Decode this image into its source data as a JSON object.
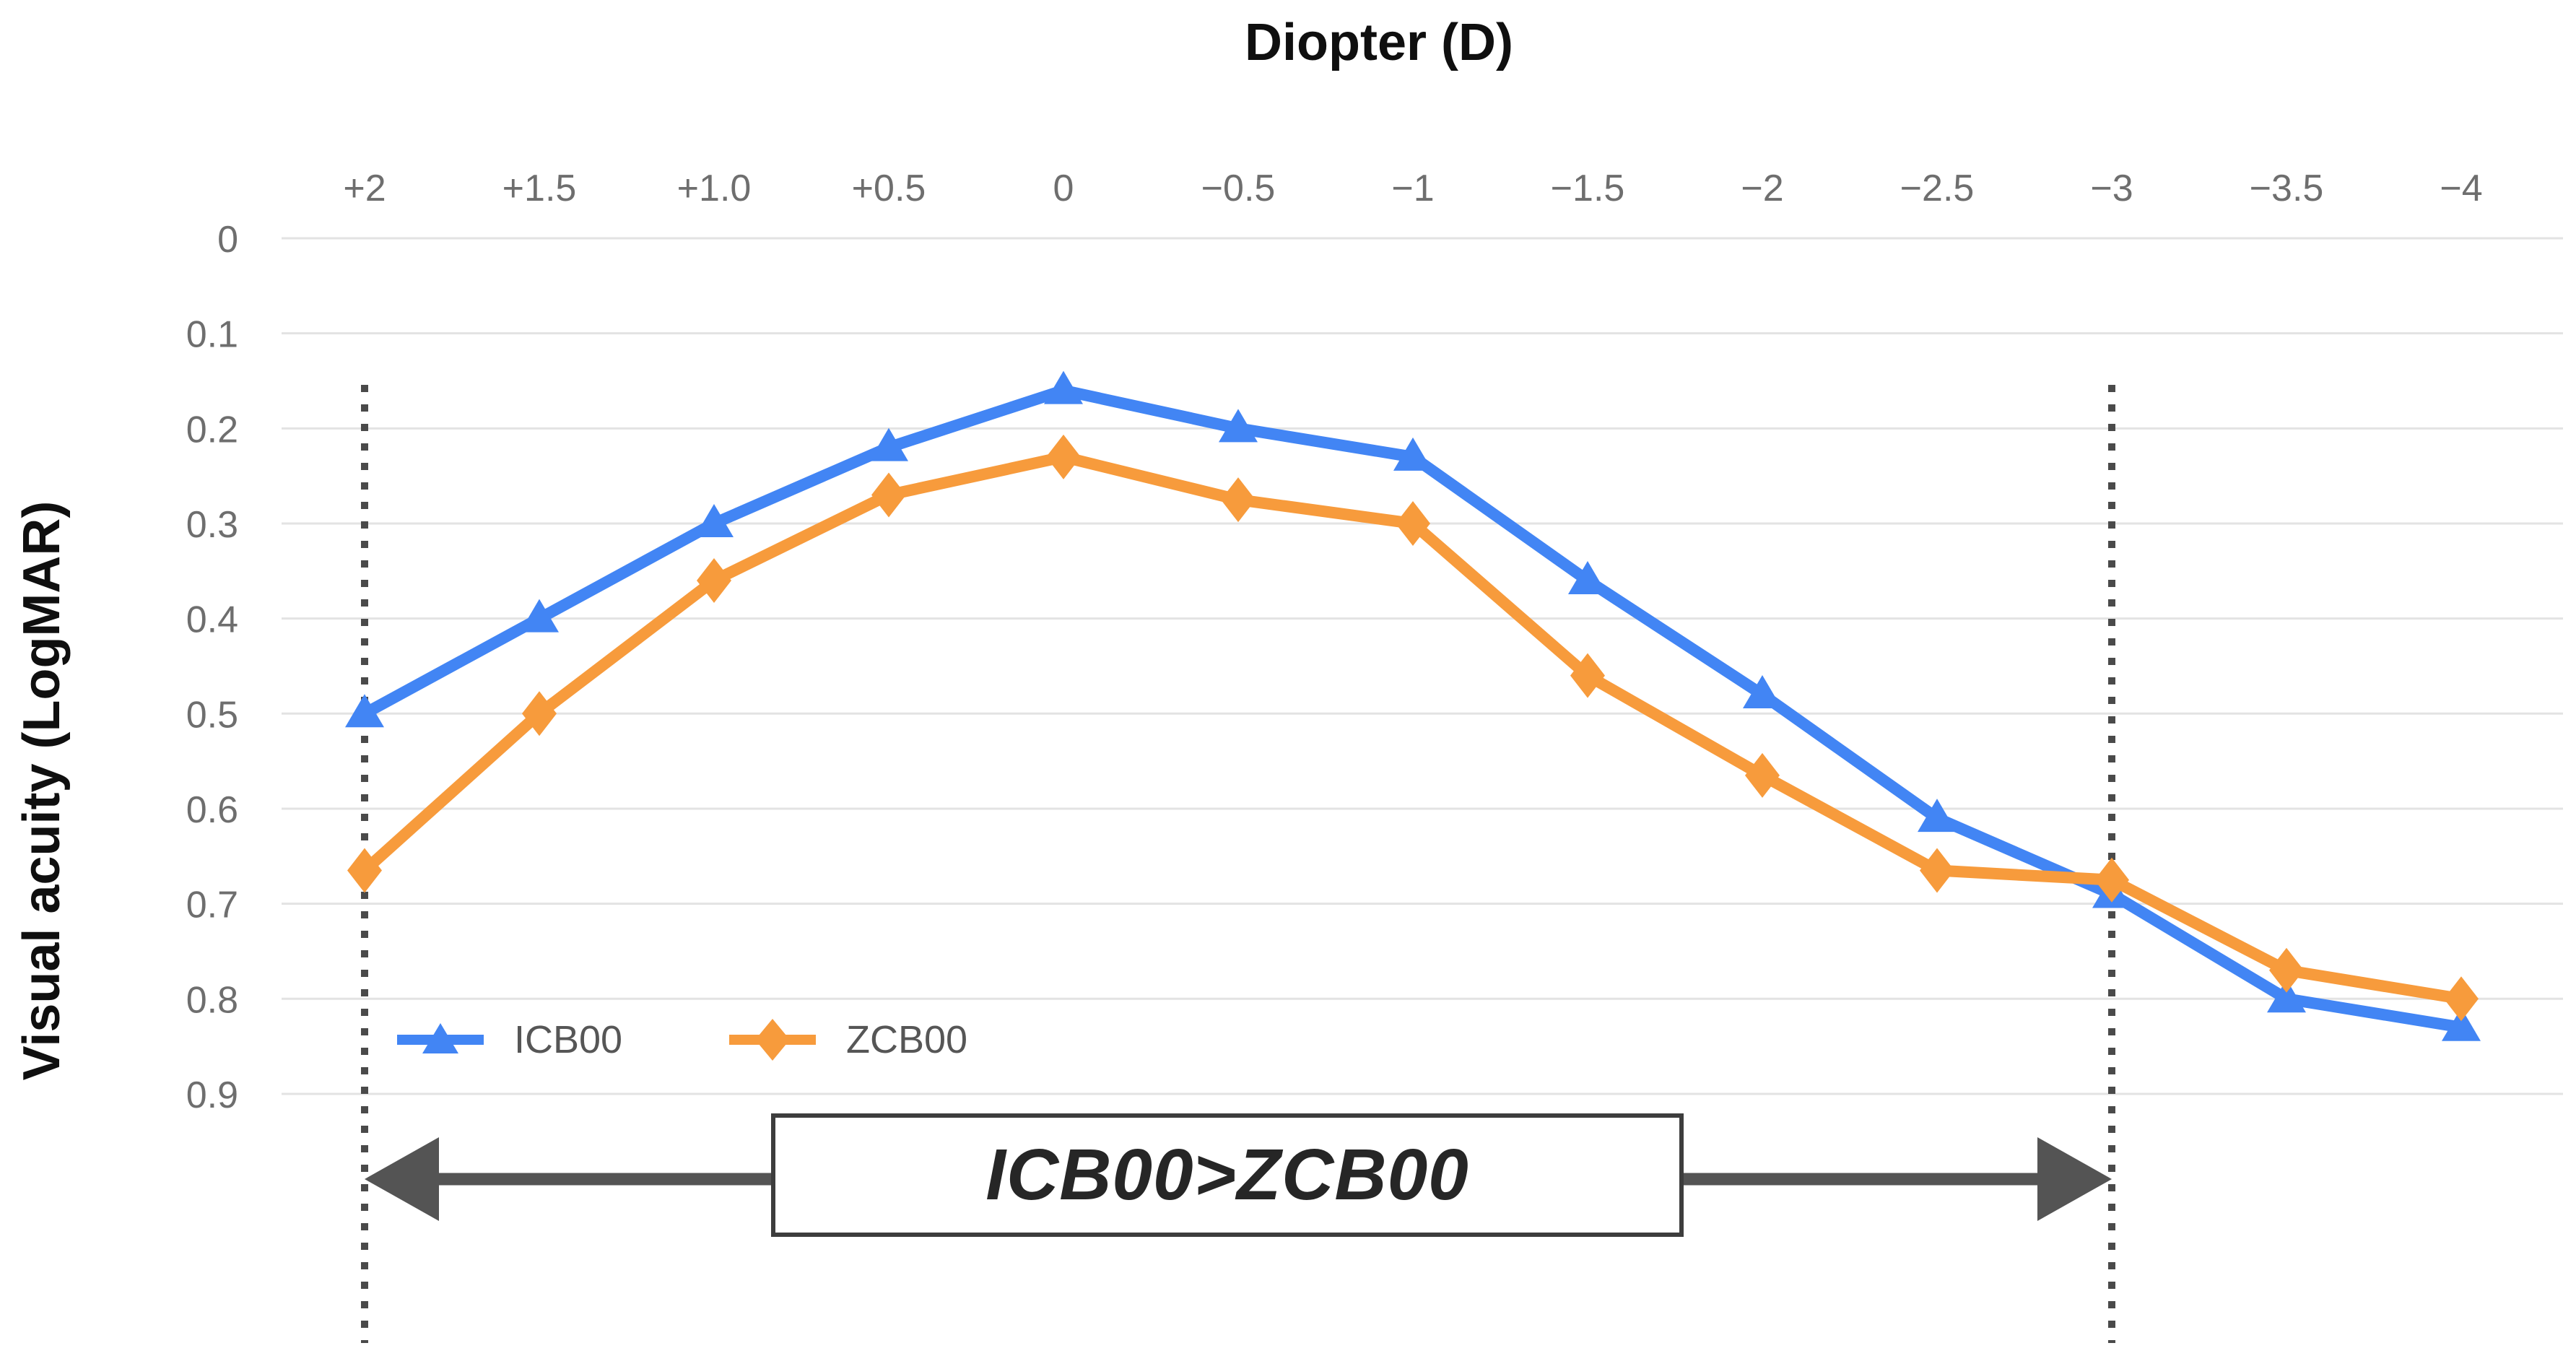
{
  "chart_data": {
    "type": "line",
    "title": "Diopter (D)",
    "ylabel": "Visual acuity (LogMAR)",
    "xlabel_position": "top",
    "y_inverted": true,
    "ylim": [
      0,
      0.9
    ],
    "grid": "horizontal",
    "legend_position": "inside-bottom-left",
    "categories": [
      "+2",
      "+1.5",
      "+1.0",
      "+0.5",
      "0",
      "−0.5",
      "−1",
      "−1.5",
      "−2",
      "−2.5",
      "−3",
      "−3.5",
      "−4"
    ],
    "y_ticks": [
      "0",
      "0.1",
      "0.2",
      "0.3",
      "0.4",
      "0.5",
      "0.6",
      "0.7",
      "0.8",
      "0.9"
    ],
    "series": [
      {
        "name": "ICB00",
        "marker": "triangle",
        "color": "#4285F4",
        "values": [
          0.5,
          0.4,
          0.3,
          0.22,
          0.16,
          0.2,
          0.23,
          0.36,
          0.48,
          0.61,
          0.69,
          0.8,
          0.83
        ]
      },
      {
        "name": "ZCB00",
        "marker": "diamond",
        "color": "#F79B3C",
        "values": [
          0.665,
          0.5,
          0.36,
          0.27,
          0.23,
          0.275,
          0.3,
          0.46,
          0.565,
          0.665,
          0.675,
          0.77,
          0.8
        ]
      }
    ],
    "annotations": {
      "dotted_lines": {
        "categories": [
          "+2",
          "−3"
        ],
        "color": "#4a4a4a"
      },
      "range_arrow": {
        "label": "ICB00>ZCB00",
        "from_category": "+2",
        "to_category": "−3",
        "arrow_color": "#545454",
        "box_border_color": "#3d3d3d",
        "text_color": "#262626"
      }
    },
    "colors": {
      "background": "#ffffff",
      "gridline": "#e3e3e3",
      "tick_label": "#6e6e6e",
      "title": "#0f0f0f",
      "legend_text": "#565656"
    }
  }
}
